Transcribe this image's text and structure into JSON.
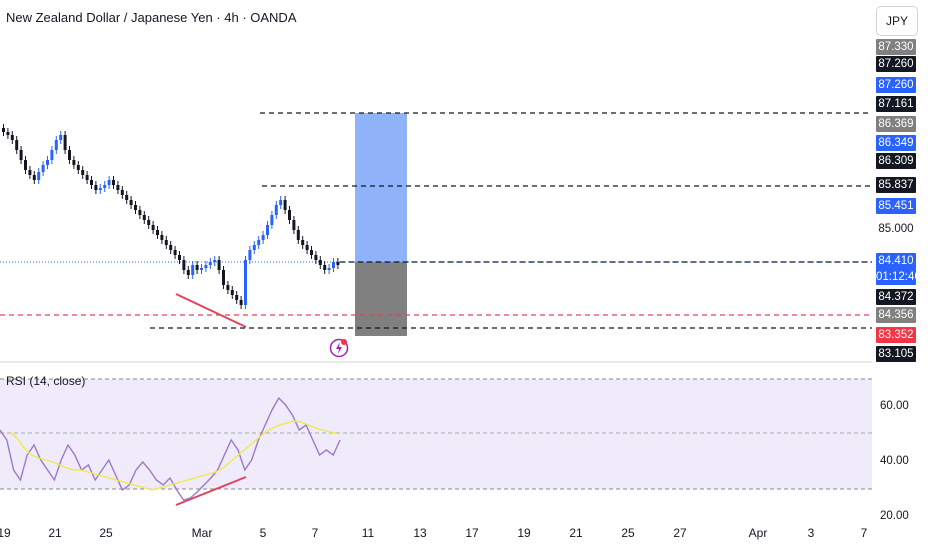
{
  "header": {
    "title": "New Zealand Dollar / Japanese Yen · 4h · OANDA",
    "currency": "JPY"
  },
  "price_labels": [
    {
      "text": "87.330",
      "style": "grey"
    },
    {
      "text": "87.260",
      "style": "black"
    },
    {
      "text": "87.260",
      "style": "blue"
    },
    {
      "text": "87.161",
      "style": "black"
    },
    {
      "text": "86.369",
      "style": "grey"
    },
    {
      "text": "86.349",
      "style": "blue"
    },
    {
      "text": "86.309",
      "style": "black"
    },
    {
      "text": "85.837",
      "style": "black"
    },
    {
      "text": "85.451",
      "style": "blue"
    },
    {
      "text": "85.000",
      "style": "plain"
    },
    {
      "text": "84.410",
      "style": "blue",
      "sub": "01:12:46"
    },
    {
      "text": "84.372",
      "style": "black"
    },
    {
      "text": "84.356",
      "style": "grey"
    },
    {
      "text": "83.352",
      "style": "red"
    },
    {
      "text": "83.105",
      "style": "black"
    }
  ],
  "rsi": {
    "label": "RSI (14, close)",
    "ticks": [
      "60.00",
      "40.00",
      "20.00"
    ]
  },
  "x_axis": [
    "19",
    "21",
    "25",
    "Mar",
    "5",
    "7",
    "11",
    "13",
    "17",
    "19",
    "21",
    "25",
    "27",
    "Apr",
    "3",
    "7"
  ],
  "colors": {
    "up": "#2962ff",
    "down": "#131722",
    "target_zone": "#8fb2f9",
    "stop_zone": "#808080",
    "rsi_line": "#9c79c8",
    "rsi_ma": "#f0e84a",
    "divergence": "#e0435a",
    "rsi_bg": "#efebfa"
  },
  "icons": [
    "flash-event-icon"
  ]
}
